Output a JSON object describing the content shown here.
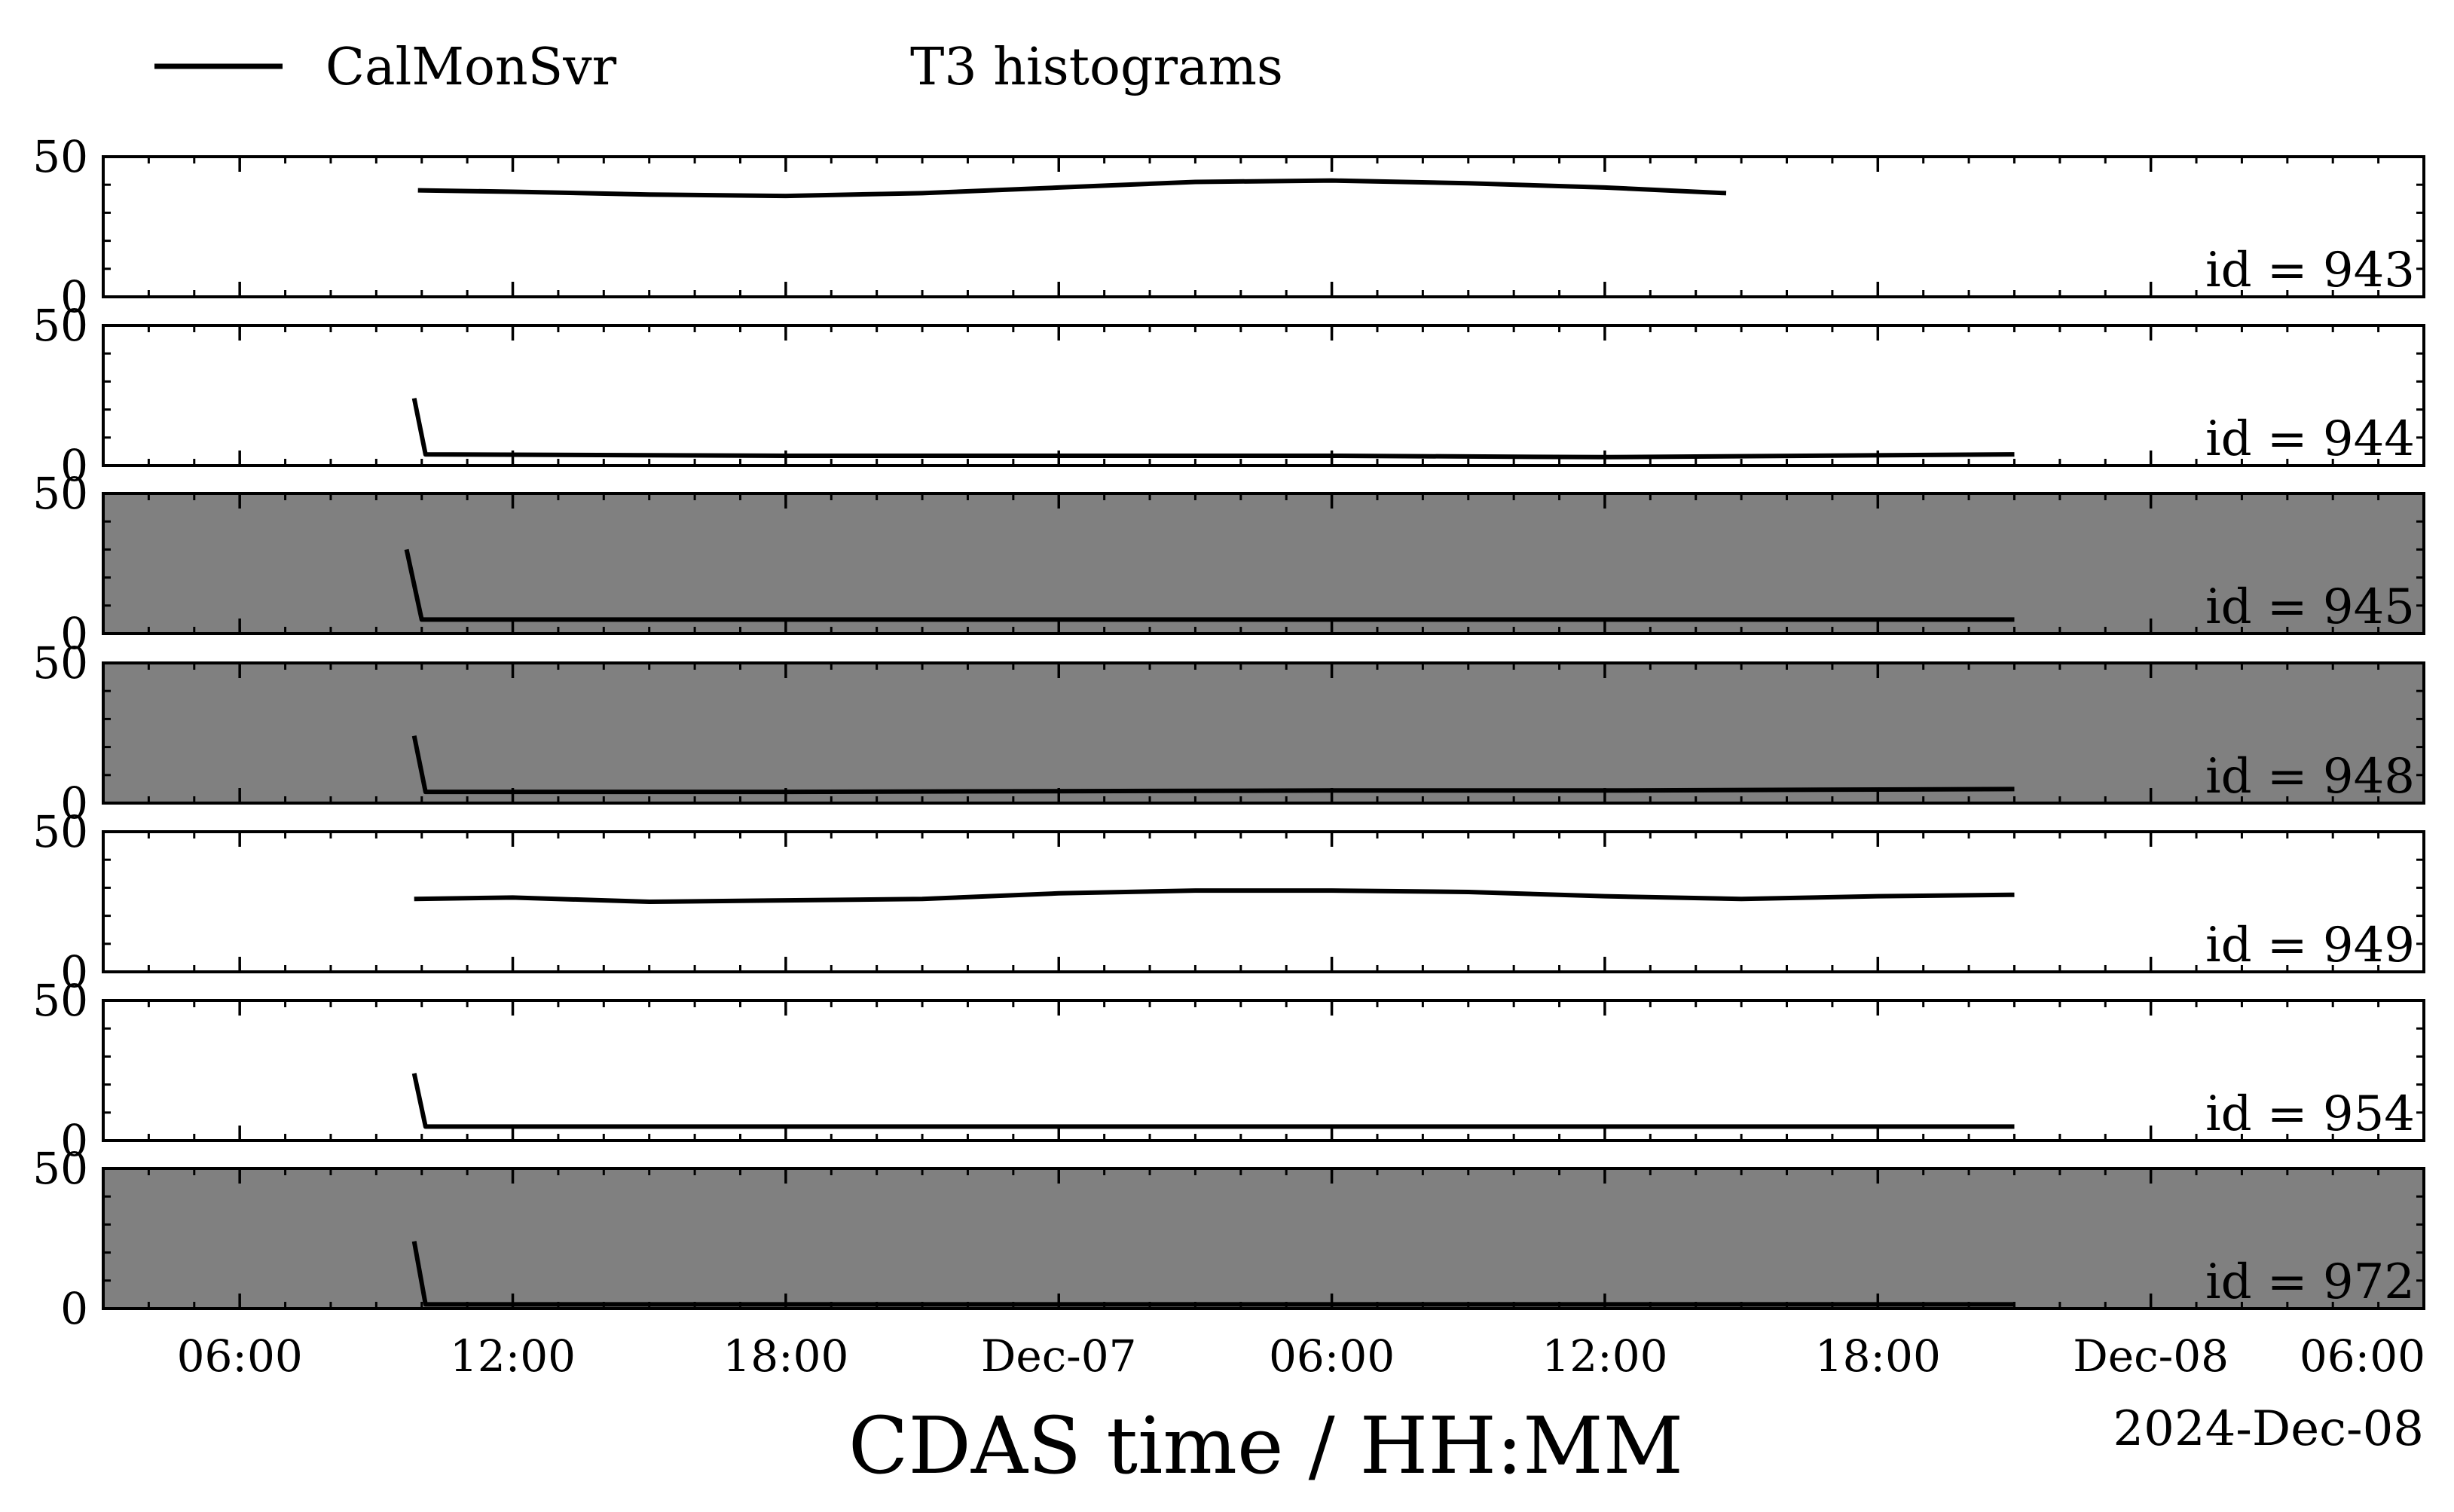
{
  "chart_data": {
    "type": "line",
    "legend": {
      "line_label": "CalMonSvr",
      "title": "T3 histograms",
      "placement": "top-left"
    },
    "xlabel": "CDAS time / HH:MM",
    "date_label": "2024-Dec-08",
    "x_range": [
      "2024-12-06T03:00",
      "2024-12-08T06:00"
    ],
    "x_ticks": [
      {
        "time": "2024-12-06T06:00",
        "label": "06:00"
      },
      {
        "time": "2024-12-06T12:00",
        "label": "12:00"
      },
      {
        "time": "2024-12-06T18:00",
        "label": "18:00"
      },
      {
        "time": "2024-12-07T00:00",
        "label": "Dec-07"
      },
      {
        "time": "2024-12-07T06:00",
        "label": "06:00"
      },
      {
        "time": "2024-12-07T12:00",
        "label": "12:00"
      },
      {
        "time": "2024-12-07T18:00",
        "label": "18:00"
      },
      {
        "time": "2024-12-08T00:00",
        "label": "Dec-08"
      },
      {
        "time": "2024-12-08T06:00",
        "label": "06:00"
      }
    ],
    "y_range": [
      0,
      50
    ],
    "y_ticks": [
      "0",
      "50"
    ],
    "line_color": "#000000",
    "highlight_color": "#808080",
    "panels": [
      {
        "label": "id = 943",
        "highlight": false,
        "series": [
          {
            "time": "2024-12-06T09:55",
            "value": 38
          },
          {
            "time": "2024-12-06T12:00",
            "value": 37.5
          },
          {
            "time": "2024-12-06T15:00",
            "value": 36.5
          },
          {
            "time": "2024-12-06T18:00",
            "value": 36
          },
          {
            "time": "2024-12-06T21:00",
            "value": 37
          },
          {
            "time": "2024-12-07T00:00",
            "value": 39
          },
          {
            "time": "2024-12-07T03:00",
            "value": 41
          },
          {
            "time": "2024-12-07T06:00",
            "value": 41.5
          },
          {
            "time": "2024-12-07T09:00",
            "value": 40.5
          },
          {
            "time": "2024-12-07T12:00",
            "value": 39
          },
          {
            "time": "2024-12-07T14:40",
            "value": 37
          }
        ]
      },
      {
        "label": "id = 944",
        "highlight": false,
        "series": [
          {
            "time": "2024-12-06T09:50",
            "value": 24
          },
          {
            "time": "2024-12-06T10:05",
            "value": 4
          },
          {
            "time": "2024-12-06T18:00",
            "value": 3.5
          },
          {
            "time": "2024-12-07T06:00",
            "value": 3.5
          },
          {
            "time": "2024-12-07T12:00",
            "value": 3
          },
          {
            "time": "2024-12-07T21:00",
            "value": 4
          }
        ]
      },
      {
        "label": "id = 945",
        "highlight": true,
        "series": [
          {
            "time": "2024-12-06T09:40",
            "value": 30
          },
          {
            "time": "2024-12-06T10:00",
            "value": 5
          },
          {
            "time": "2024-12-06T18:00",
            "value": 5
          },
          {
            "time": "2024-12-07T06:00",
            "value": 5
          },
          {
            "time": "2024-12-07T12:00",
            "value": 5
          },
          {
            "time": "2024-12-07T21:00",
            "value": 5
          }
        ]
      },
      {
        "label": "id = 948",
        "highlight": true,
        "series": [
          {
            "time": "2024-12-06T09:50",
            "value": 24
          },
          {
            "time": "2024-12-06T10:05",
            "value": 4
          },
          {
            "time": "2024-12-06T18:00",
            "value": 4
          },
          {
            "time": "2024-12-07T06:00",
            "value": 4.5
          },
          {
            "time": "2024-12-07T12:00",
            "value": 4.5
          },
          {
            "time": "2024-12-07T21:00",
            "value": 5
          }
        ]
      },
      {
        "label": "id = 949",
        "highlight": false,
        "series": [
          {
            "time": "2024-12-06T09:50",
            "value": 26
          },
          {
            "time": "2024-12-06T12:00",
            "value": 26.5
          },
          {
            "time": "2024-12-06T15:00",
            "value": 25
          },
          {
            "time": "2024-12-06T18:00",
            "value": 25.5
          },
          {
            "time": "2024-12-06T21:00",
            "value": 26
          },
          {
            "time": "2024-12-07T00:00",
            "value": 28
          },
          {
            "time": "2024-12-07T03:00",
            "value": 29
          },
          {
            "time": "2024-12-07T06:00",
            "value": 29
          },
          {
            "time": "2024-12-07T09:00",
            "value": 28.5
          },
          {
            "time": "2024-12-07T12:00",
            "value": 27
          },
          {
            "time": "2024-12-07T15:00",
            "value": 26
          },
          {
            "time": "2024-12-07T18:00",
            "value": 27
          },
          {
            "time": "2024-12-07T21:00",
            "value": 27.5
          }
        ]
      },
      {
        "label": "id = 954",
        "highlight": false,
        "series": [
          {
            "time": "2024-12-06T09:50",
            "value": 24
          },
          {
            "time": "2024-12-06T10:05",
            "value": 5
          },
          {
            "time": "2024-12-06T18:00",
            "value": 5
          },
          {
            "time": "2024-12-07T06:00",
            "value": 5
          },
          {
            "time": "2024-12-07T12:00",
            "value": 5
          },
          {
            "time": "2024-12-07T21:00",
            "value": 5
          }
        ]
      },
      {
        "label": "id = 972",
        "highlight": true,
        "series": [
          {
            "time": "2024-12-06T09:50",
            "value": 24
          },
          {
            "time": "2024-12-06T10:05",
            "value": 1.5
          },
          {
            "time": "2024-12-06T18:00",
            "value": 1.5
          },
          {
            "time": "2024-12-07T06:00",
            "value": 1.5
          },
          {
            "time": "2024-12-07T12:00",
            "value": 1.5
          },
          {
            "time": "2024-12-07T21:00",
            "value": 1.5
          }
        ]
      }
    ]
  }
}
